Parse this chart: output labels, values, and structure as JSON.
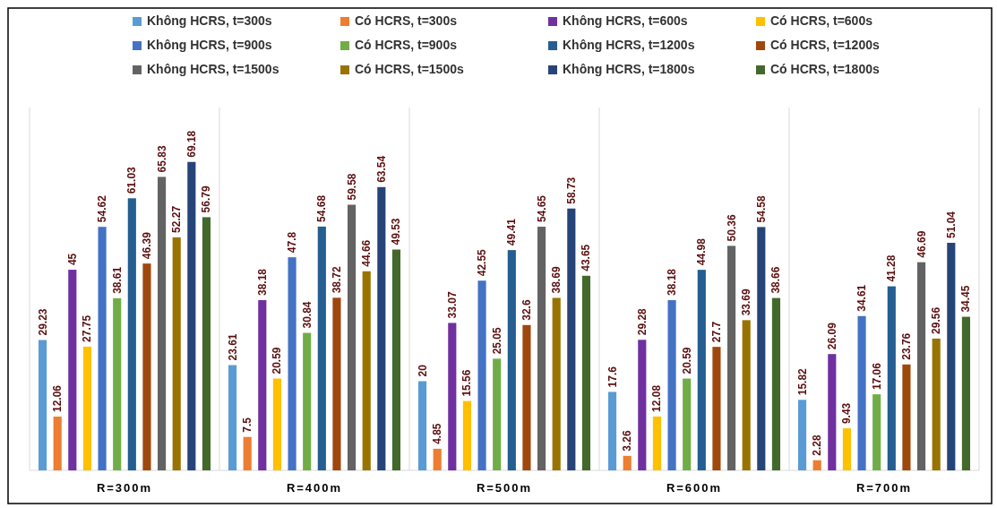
{
  "chart_data": {
    "type": "bar",
    "categories": [
      "R=300m",
      "R=400m",
      "R=500m",
      "R=600m",
      "R=700m"
    ],
    "series": [
      {
        "name": "Không HCRS, t=300s",
        "color": "#5b9bd5",
        "values": [
          29.23,
          23.61,
          20,
          17.6,
          15.82
        ]
      },
      {
        "name": "Có HCRS, t=300s",
        "color": "#ed7d31",
        "values": [
          12.06,
          7.5,
          4.85,
          3.26,
          2.28
        ]
      },
      {
        "name": "Không HCRS, t=600s",
        "color": "#7030a0",
        "values": [
          45,
          38.18,
          33.07,
          29.28,
          26.09
        ]
      },
      {
        "name": "Có HCRS, t=600s",
        "color": "#ffc000",
        "values": [
          27.75,
          20.59,
          15.56,
          12.08,
          9.43
        ]
      },
      {
        "name": "Không HCRS, t=900s",
        "color": "#4472c4",
        "values": [
          54.62,
          47.8,
          42.55,
          38.18,
          34.61
        ]
      },
      {
        "name": "Có HCRS, t=900s",
        "color": "#70ad47",
        "values": [
          38.61,
          30.84,
          25.05,
          20.59,
          17.06
        ]
      },
      {
        "name": "Không HCRS, t=1200s",
        "color": "#255e91",
        "values": [
          61.03,
          54.68,
          49.41,
          44.98,
          41.28
        ]
      },
      {
        "name": "Có HCRS, t=1200s",
        "color": "#9e480e",
        "values": [
          46.39,
          38.72,
          32.6,
          27.7,
          23.76
        ]
      },
      {
        "name": "Không HCRS, t=1500s",
        "color": "#636363",
        "values": [
          65.83,
          59.58,
          54.65,
          50.36,
          46.69
        ]
      },
      {
        "name": "Có HCRS, t=1500s",
        "color": "#997300",
        "values": [
          52.27,
          44.66,
          38.69,
          33.69,
          29.56
        ]
      },
      {
        "name": "Không HCRS, t=1800s",
        "color": "#264478",
        "values": [
          69.18,
          63.54,
          58.73,
          54.58,
          51.04
        ]
      },
      {
        "name": "Có HCRS, t=1800s",
        "color": "#43682b",
        "values": [
          56.79,
          49.53,
          43.65,
          38.66,
          34.45
        ]
      }
    ],
    "data_labels": true,
    "grid": "x",
    "legend": "top"
  }
}
